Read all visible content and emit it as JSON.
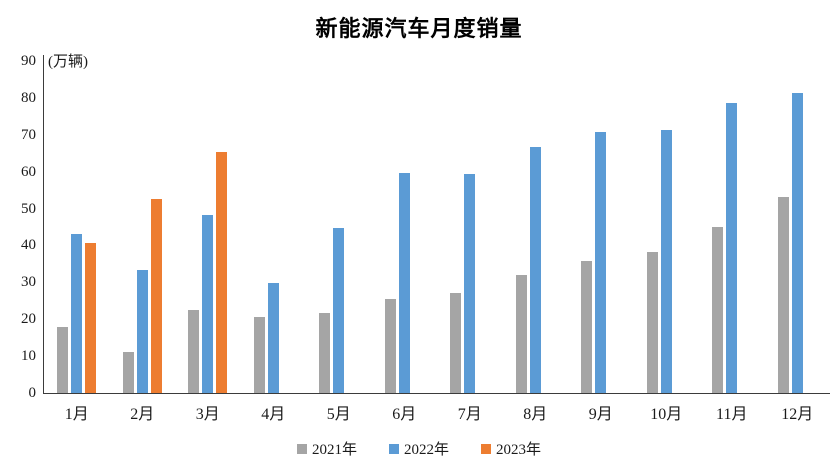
{
  "title": "新能源汽车月度销量",
  "y_axis": {
    "unit_label": "(万辆)",
    "ticks": [
      0,
      10,
      20,
      30,
      40,
      50,
      60,
      70,
      80,
      90
    ]
  },
  "colors": {
    "series_2021": "#A5A5A5",
    "series_2022": "#5B9BD5",
    "series_2023": "#ED7D31",
    "axis_line": "#3b3b3b",
    "text": "#1a1a1a",
    "background": "#ffffff"
  },
  "chart_data": {
    "type": "bar",
    "title": "新能源汽车月度销量",
    "xlabel": "",
    "ylabel": "(万辆)",
    "ylim": [
      0,
      90
    ],
    "ytick_step": 10,
    "grid": false,
    "legend_position": "bottom",
    "categories": [
      "1月",
      "2月",
      "3月",
      "4月",
      "5月",
      "6月",
      "7月",
      "8月",
      "9月",
      "10月",
      "11月",
      "12月"
    ],
    "series": [
      {
        "name": "2021年",
        "color": "#A5A5A5",
        "values": [
          17.9,
          11.0,
          22.6,
          20.6,
          21.7,
          25.6,
          27.1,
          32.1,
          35.7,
          38.3,
          45.0,
          53.1
        ]
      },
      {
        "name": "2022年",
        "color": "#5B9BD5",
        "values": [
          43.1,
          33.4,
          48.4,
          29.9,
          44.7,
          59.6,
          59.3,
          66.6,
          70.8,
          71.4,
          78.6,
          81.4
        ]
      },
      {
        "name": "2023年",
        "color": "#ED7D31",
        "values": [
          40.8,
          52.5,
          65.3,
          null,
          null,
          null,
          null,
          null,
          null,
          null,
          null,
          null
        ]
      }
    ]
  }
}
